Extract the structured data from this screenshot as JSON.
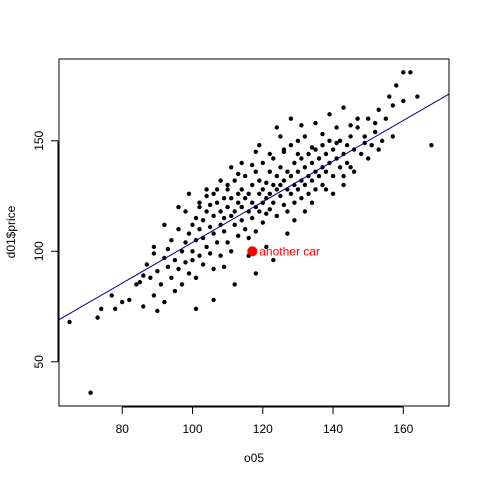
{
  "chart_data": {
    "type": "scatter",
    "xlabel": "o05",
    "ylabel": "d01$price",
    "xlim": [
      62,
      173
    ],
    "ylim": [
      30,
      187
    ],
    "x_ticks": [
      80,
      100,
      120,
      140,
      160
    ],
    "y_ticks": [
      50,
      100,
      150
    ],
    "grid": false,
    "point_color": "#000000",
    "highlight_color": "#ff0000",
    "line_color": "#00008b",
    "series": [
      {
        "points": [
          [
            65,
            68
          ],
          [
            71,
            36
          ],
          [
            73,
            70
          ],
          [
            74,
            74
          ],
          [
            77,
            80
          ],
          [
            78,
            74
          ],
          [
            80,
            77
          ],
          [
            82,
            78
          ],
          [
            84,
            85
          ],
          [
            85,
            86
          ],
          [
            86,
            89
          ],
          [
            86,
            75
          ],
          [
            87,
            94
          ],
          [
            88,
            88
          ],
          [
            89,
            99
          ],
          [
            89,
            80
          ],
          [
            90,
            91
          ],
          [
            90,
            73
          ],
          [
            91,
            85
          ],
          [
            92,
            97
          ],
          [
            92,
            77
          ],
          [
            93,
            93
          ],
          [
            93,
            101
          ],
          [
            94,
            88
          ],
          [
            94,
            105
          ],
          [
            95,
            96
          ],
          [
            95,
            82
          ],
          [
            96,
            110
          ],
          [
            96,
            92
          ],
          [
            97,
            100
          ],
          [
            97,
            85
          ],
          [
            98,
            104
          ],
          [
            98,
            95
          ],
          [
            98,
            118
          ],
          [
            99,
            108
          ],
          [
            99,
            90
          ],
          [
            100,
            112
          ],
          [
            100,
            100
          ],
          [
            100,
            96
          ],
          [
            101,
            115
          ],
          [
            101,
            105
          ],
          [
            101,
            88
          ],
          [
            102,
            120
          ],
          [
            102,
            110
          ],
          [
            102,
            98
          ],
          [
            103,
            106
          ],
          [
            103,
            114
          ],
          [
            103,
            94
          ],
          [
            104,
            118
          ],
          [
            104,
            102
          ],
          [
            104,
            125
          ],
          [
            105,
            111
          ],
          [
            105,
            99
          ],
          [
            105,
            121
          ],
          [
            106,
            108
          ],
          [
            106,
            116
          ],
          [
            106,
            92
          ],
          [
            107,
            122
          ],
          [
            107,
            104
          ],
          [
            107,
            128
          ],
          [
            108,
            112
          ],
          [
            108,
            118
          ],
          [
            108,
            98
          ],
          [
            109,
            124
          ],
          [
            109,
            109
          ],
          [
            109,
            115
          ],
          [
            110,
            120
          ],
          [
            110,
            104
          ],
          [
            110,
            130
          ],
          [
            111,
            116
          ],
          [
            111,
            124
          ],
          [
            111,
            100
          ],
          [
            112,
            118
          ],
          [
            112,
            112
          ],
          [
            112,
            132
          ],
          [
            113,
            122
          ],
          [
            113,
            107
          ],
          [
            113,
            126
          ],
          [
            114,
            114
          ],
          [
            114,
            128
          ],
          [
            114,
            120
          ],
          [
            115,
            110
          ],
          [
            115,
            124
          ],
          [
            115,
            134
          ],
          [
            116,
            118
          ],
          [
            116,
            126
          ],
          [
            116,
            106
          ],
          [
            117,
            122
          ],
          [
            117,
            130
          ],
          [
            117,
            115
          ],
          [
            118,
            136
          ],
          [
            118,
            120
          ],
          [
            118,
            109
          ],
          [
            119,
            126
          ],
          [
            119,
            118
          ],
          [
            119,
            132
          ],
          [
            120,
            122
          ],
          [
            120,
            128
          ],
          [
            120,
            113
          ],
          [
            120,
            140
          ],
          [
            121,
            124
          ],
          [
            121,
            131
          ],
          [
            121,
            117
          ],
          [
            122,
            126
          ],
          [
            122,
            136
          ],
          [
            122,
            119
          ],
          [
            123,
            130
          ],
          [
            123,
            122
          ],
          [
            123,
            142
          ],
          [
            124,
            128
          ],
          [
            124,
            134
          ],
          [
            124,
            116
          ],
          [
            125,
            125
          ],
          [
            125,
            138
          ],
          [
            125,
            130
          ],
          [
            126,
            132
          ],
          [
            126,
            121
          ],
          [
            126,
            145
          ],
          [
            127,
            128
          ],
          [
            127,
            136
          ],
          [
            127,
            118
          ],
          [
            128,
            134
          ],
          [
            128,
            126
          ],
          [
            128,
            148
          ],
          [
            129,
            130
          ],
          [
            129,
            140
          ],
          [
            129,
            122
          ],
          [
            130,
            136
          ],
          [
            130,
            128
          ],
          [
            130,
            150
          ],
          [
            131,
            132
          ],
          [
            131,
            142
          ],
          [
            131,
            124
          ],
          [
            132,
            138
          ],
          [
            132,
            130
          ],
          [
            132,
            152
          ],
          [
            133,
            134
          ],
          [
            133,
            126
          ],
          [
            133,
            144
          ],
          [
            134,
            140
          ],
          [
            134,
            132
          ],
          [
            135,
            136
          ],
          [
            135,
            146
          ],
          [
            135,
            128
          ],
          [
            136,
            142
          ],
          [
            136,
            134
          ],
          [
            137,
            138
          ],
          [
            137,
            148
          ],
          [
            137,
            130
          ],
          [
            138,
            144
          ],
          [
            138,
            136
          ],
          [
            139,
            140
          ],
          [
            139,
            150
          ],
          [
            140,
            134
          ],
          [
            140,
            146
          ],
          [
            141,
            142
          ],
          [
            141,
            156
          ],
          [
            142,
            138
          ],
          [
            142,
            150
          ],
          [
            143,
            144
          ],
          [
            143,
            134
          ],
          [
            144,
            148
          ],
          [
            144,
            140
          ],
          [
            145,
            152
          ],
          [
            145,
            138
          ],
          [
            146,
            146
          ],
          [
            147,
            156
          ],
          [
            148,
            144
          ],
          [
            149,
            152
          ],
          [
            150,
            160
          ],
          [
            151,
            148
          ],
          [
            152,
            158
          ],
          [
            153,
            164
          ],
          [
            154,
            150
          ],
          [
            155,
            160
          ],
          [
            156,
            170
          ],
          [
            157,
            166
          ],
          [
            158,
            175
          ],
          [
            160,
            168
          ],
          [
            160,
            181
          ],
          [
            162,
            181
          ],
          [
            164,
            170
          ],
          [
            168,
            148
          ],
          [
            101,
            74
          ],
          [
            106,
            78
          ],
          [
            112,
            85
          ],
          [
            109,
            93
          ],
          [
            118,
            90
          ],
          [
            123,
            96
          ],
          [
            132,
            118
          ],
          [
            140,
            126
          ],
          [
            129,
            114
          ],
          [
            96,
            120
          ],
          [
            104,
            128
          ],
          [
            111,
            138
          ],
          [
            118,
            145
          ],
          [
            125,
            152
          ],
          [
            99,
            126
          ],
          [
            92,
            112
          ],
          [
            89,
            102
          ],
          [
            116,
            98
          ],
          [
            121,
            102
          ],
          [
            127,
            108
          ],
          [
            134,
            122
          ],
          [
            138,
            128
          ],
          [
            143,
            130
          ],
          [
            146,
            136
          ],
          [
            150,
            142
          ],
          [
            153,
            146
          ],
          [
            157,
            152
          ],
          [
            108,
            132
          ],
          [
            114,
            140
          ],
          [
            119,
            148
          ],
          [
            124,
            156
          ],
          [
            128,
            160
          ],
          [
            131,
            157
          ],
          [
            135,
            158
          ],
          [
            139,
            162
          ],
          [
            143,
            165
          ],
          [
            147,
            160
          ],
          [
            102,
            122
          ],
          [
            106,
            126
          ],
          [
            110,
            128
          ],
          [
            113,
            135
          ],
          [
            117,
            139
          ],
          [
            122,
            144
          ],
          [
            126,
            146
          ],
          [
            130,
            144
          ],
          [
            134,
            147
          ],
          [
            137,
            153
          ],
          [
            141,
            149
          ],
          [
            145,
            157
          ],
          [
            149,
            149
          ],
          [
            152,
            154
          ]
        ]
      }
    ],
    "highlight": {
      "x": 117,
      "y": 100,
      "label": "another car"
    },
    "regression_line": {
      "intercept": 12.0,
      "slope": 0.92
    }
  }
}
